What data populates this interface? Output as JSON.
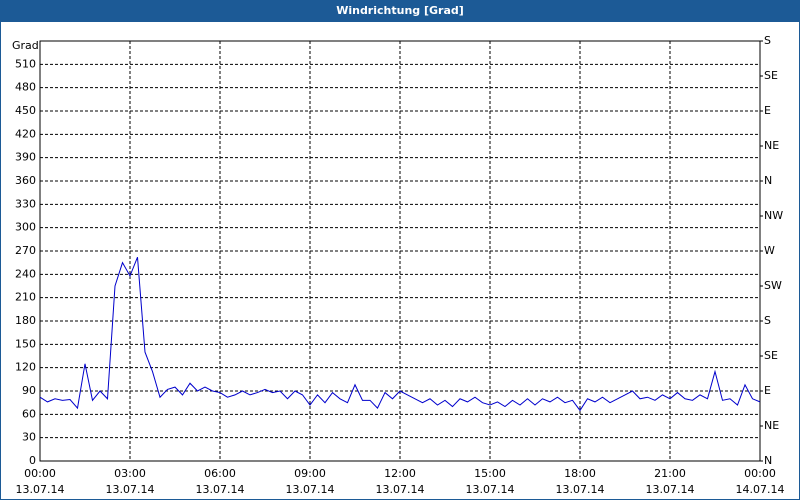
{
  "chart_data": {
    "type": "line",
    "title": "Windrichtung [Grad]",
    "y_label": "Grad",
    "x": [
      0,
      0.25,
      0.5,
      0.75,
      1,
      1.25,
      1.5,
      1.75,
      2,
      2.25,
      2.5,
      2.75,
      3,
      3.25,
      3.5,
      3.75,
      4,
      4.25,
      4.5,
      4.75,
      5,
      5.25,
      5.5,
      5.75,
      6,
      6.25,
      6.5,
      6.75,
      7,
      7.25,
      7.5,
      7.75,
      8,
      8.25,
      8.5,
      8.75,
      9,
      9.25,
      9.5,
      9.75,
      10,
      10.25,
      10.5,
      10.75,
      11,
      11.25,
      11.5,
      11.75,
      12,
      12.25,
      12.5,
      12.75,
      13,
      13.25,
      13.5,
      13.75,
      14,
      14.25,
      14.5,
      14.75,
      15,
      15.25,
      15.5,
      15.75,
      16,
      16.25,
      16.5,
      16.75,
      17,
      17.25,
      17.5,
      17.75,
      18,
      18.25,
      18.5,
      18.75,
      19,
      19.25,
      19.5,
      19.75,
      20,
      20.25,
      20.5,
      20.75,
      21,
      21.25,
      21.5,
      21.75,
      22,
      22.25,
      22.5,
      22.75,
      23,
      23.25,
      23.5,
      23.75,
      24
    ],
    "series": [
      {
        "color": "#0000cc",
        "values": [
          82,
          76,
          80,
          78,
          79,
          68,
          125,
          78,
          90,
          80,
          225,
          255,
          238,
          262,
          140,
          115,
          82,
          92,
          95,
          85,
          100,
          90,
          95,
          90,
          88,
          82,
          85,
          90,
          85,
          88,
          92,
          88,
          90,
          80,
          90,
          85,
          72,
          85,
          75,
          88,
          80,
          75,
          98,
          78,
          78,
          68,
          88,
          80,
          90,
          85,
          80,
          75,
          80,
          72,
          78,
          70,
          80,
          76,
          82,
          75,
          72,
          76,
          70,
          78,
          72,
          80,
          72,
          80,
          76,
          82,
          75,
          78,
          65,
          80,
          76,
          82,
          75,
          80,
          85,
          90,
          80,
          82,
          78,
          85,
          80,
          88,
          80,
          78,
          85,
          80,
          115,
          78,
          80,
          72,
          98,
          80,
          76
        ]
      }
    ],
    "xlim": [
      0,
      24
    ],
    "xticks": [
      {
        "value": 0,
        "label": "00:00",
        "date": "13.07.14"
      },
      {
        "value": 3,
        "label": "03:00",
        "date": "13.07.14"
      },
      {
        "value": 6,
        "label": "06:00",
        "date": "13.07.14"
      },
      {
        "value": 9,
        "label": "09:00",
        "date": "13.07.14"
      },
      {
        "value": 12,
        "label": "12:00",
        "date": "13.07.14"
      },
      {
        "value": 15,
        "label": "15:00",
        "date": "13.07.14"
      },
      {
        "value": 18,
        "label": "18:00",
        "date": "13.07.14"
      },
      {
        "value": 21,
        "label": "21:00",
        "date": "13.07.14"
      },
      {
        "value": 24,
        "label": "00:00",
        "date": "14.07.14"
      }
    ],
    "ylim": [
      0,
      540
    ],
    "yticks": [
      0,
      30,
      60,
      90,
      120,
      150,
      180,
      210,
      240,
      270,
      300,
      330,
      360,
      390,
      420,
      450,
      480,
      510
    ],
    "y2lim": [
      0,
      540
    ],
    "y2ticks": [
      {
        "value": 0,
        "label": "N"
      },
      {
        "value": 45,
        "label": "NE"
      },
      {
        "value": 90,
        "label": "E"
      },
      {
        "value": 135,
        "label": "SE"
      },
      {
        "value": 180,
        "label": "S"
      },
      {
        "value": 225,
        "label": "SW"
      },
      {
        "value": 270,
        "label": "W"
      },
      {
        "value": 315,
        "label": "NW"
      },
      {
        "value": 360,
        "label": "N"
      },
      {
        "value": 405,
        "label": "NE"
      },
      {
        "value": 450,
        "label": "E"
      },
      {
        "value": 495,
        "label": "SE"
      },
      {
        "value": 540,
        "label": "S"
      }
    ],
    "grid": true
  }
}
